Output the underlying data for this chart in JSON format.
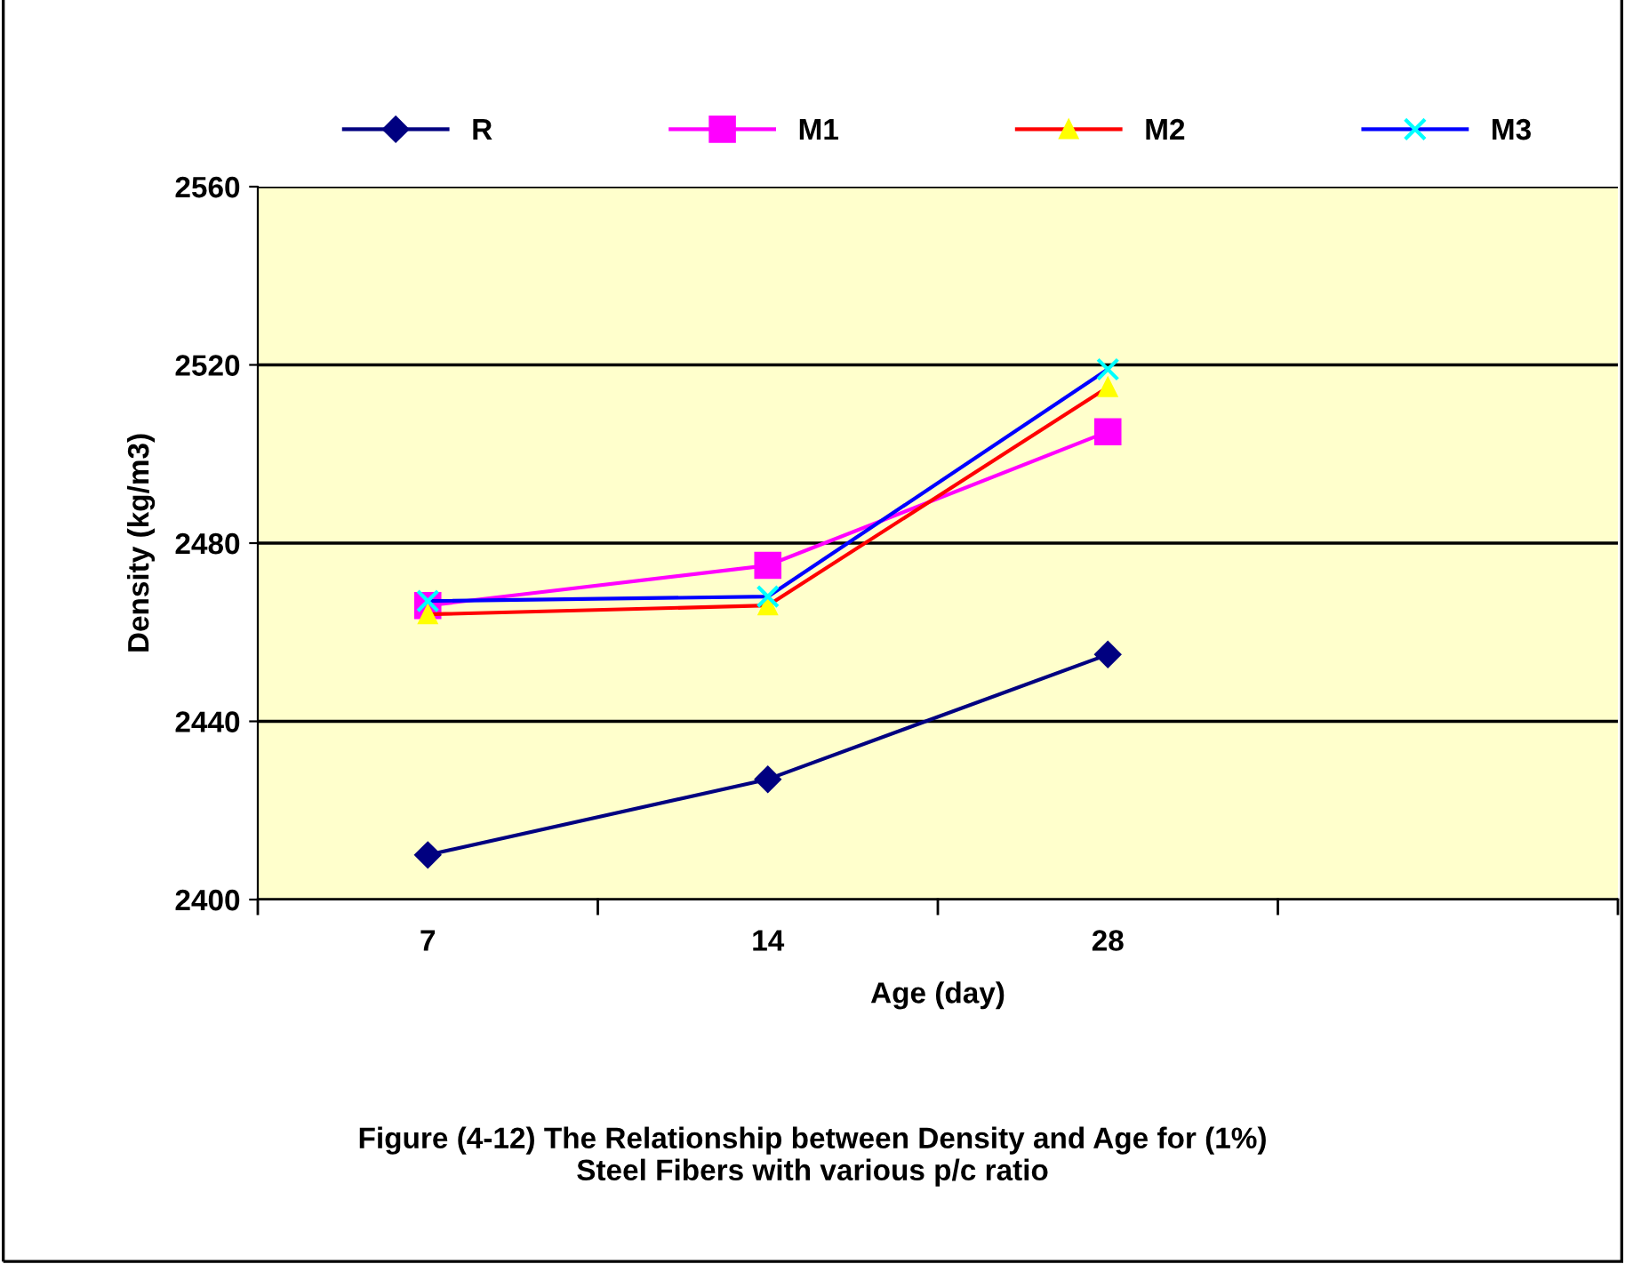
{
  "chart_data": {
    "type": "line",
    "xlabel": "Age (day)",
    "ylabel": "Density (kg/m3)",
    "categories": [
      "7",
      "14",
      "28",
      null
    ],
    "series": [
      {
        "name": "R",
        "color": "#000080",
        "marker": "diamond",
        "values": [
          2410,
          2427,
          2455,
          null
        ]
      },
      {
        "name": "M1",
        "color": "#ff00ff",
        "marker": "square",
        "values": [
          2466,
          2475,
          2505,
          null
        ]
      },
      {
        "name": "M2",
        "color": "#ff0000",
        "marker": "triangle",
        "values": [
          2464,
          2466,
          2515,
          null
        ]
      },
      {
        "name": "M3",
        "color": "#0000ff",
        "marker": "cross",
        "values": [
          2467,
          2468,
          2519,
          null
        ]
      }
    ],
    "ylim": [
      2400,
      2560
    ],
    "yticks": [
      2400,
      2440,
      2480,
      2520,
      2560
    ],
    "grid": "y",
    "legend": "top",
    "annotations": [
      "Figure (4-12) The Relationship between Density and Age for (1%)\nSteel Fibers with various p/c ratio"
    ]
  }
}
